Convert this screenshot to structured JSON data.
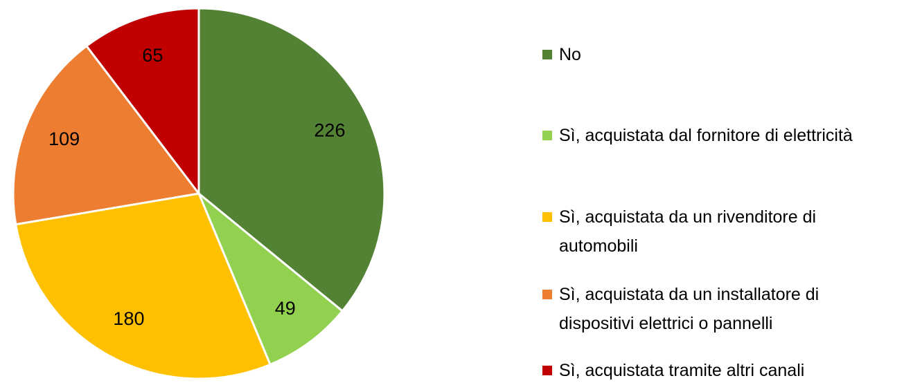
{
  "chart_data": {
    "type": "pie",
    "categories": [
      "No",
      "Sì, acquistata dal fornitore di elettricità",
      "Sì, acquistata da un rivenditore di automobili",
      "Sì, acquistata da un installatore di dispositivi elettrici o pannelli",
      "Sì, acquistata tramite altri canali"
    ],
    "values": [
      226,
      49,
      180,
      109,
      65
    ],
    "colors": [
      "#548235",
      "#92d050",
      "#ffc000",
      "#ed7d31",
      "#c00000"
    ],
    "legend": "right"
  }
}
